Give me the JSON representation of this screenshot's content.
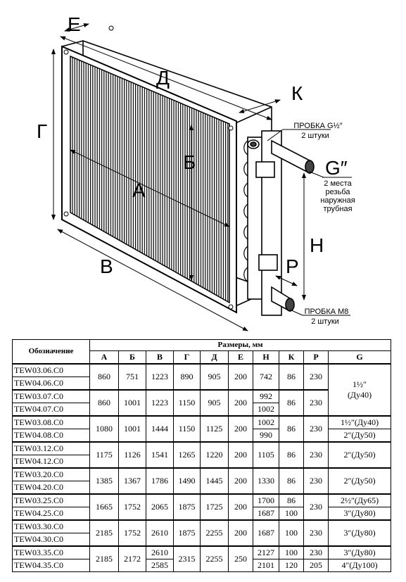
{
  "drawing": {
    "dim_e": "Е",
    "dim_d": "Д",
    "dim_k": "К",
    "dim_g": "Г",
    "dim_b": "Б",
    "dim_a": "А",
    "dim_v": "В",
    "dim_h": "Н",
    "dim_p": "Р",
    "dim_G": "G″",
    "plug_top": "ПРОБКА G½″",
    "plug_top_count": "2 штуки",
    "thread_1": "2 места",
    "thread_2": "резьба",
    "thread_3": "наружная",
    "thread_4": "трубная",
    "plug_bottom": "ПРОБКА М8",
    "plug_bottom_count": "2 штуки"
  },
  "table": {
    "designation_header": "Обозначение",
    "dimensions_header": "Размеры, мм",
    "columns": [
      "А",
      "Б",
      "В",
      "Г",
      "Д",
      "Е",
      "Н",
      "К",
      "Р",
      "G"
    ],
    "groups": [
      {
        "codes": [
          "TEW03.06.C0",
          "TEW04.06.C0"
        ],
        "A": "860",
        "B": "751",
        "V": "1223",
        "G1": "890",
        "D": "905",
        "E": "200",
        "H": [
          "742"
        ],
        "K": [
          "86"
        ],
        "P": [
          "230"
        ],
        "G": [
          "1½″",
          "(Ду40)"
        ]
      },
      {
        "codes": [
          "TEW03.07.C0",
          "TEW04.07.C0"
        ],
        "A": "860",
        "B": "1001",
        "V": "1223",
        "G1": "1150",
        "D": "905",
        "E": "200",
        "H": [
          "992",
          "1002"
        ],
        "K": [
          "86"
        ],
        "P": [
          "230"
        ],
        "G": []
      },
      {
        "codes": [
          "TEW03.08.C0",
          "TEW04.08.C0"
        ],
        "A": "1080",
        "B": "1001",
        "V": "1444",
        "G1": "1150",
        "D": "1125",
        "E": "200",
        "H": [
          "1002",
          "990"
        ],
        "K": [
          "86"
        ],
        "P": [
          "230"
        ],
        "G": [
          "1½″(Ду40)",
          "2″(Ду50)"
        ]
      },
      {
        "codes": [
          "TEW03.12.C0",
          "TEW04.12.C0"
        ],
        "A": "1175",
        "B": "1126",
        "V": "1541",
        "G1": "1265",
        "D": "1220",
        "E": "200",
        "H": [
          "1105"
        ],
        "K": [
          "86"
        ],
        "P": [
          "230"
        ],
        "G": [
          "2″(Ду50)"
        ]
      },
      {
        "codes": [
          "TEW03.20.C0",
          "TEW04.20.C0"
        ],
        "A": "1385",
        "B": "1367",
        "V": "1786",
        "G1": "1490",
        "D": "1445",
        "E": "200",
        "H": [
          "1330"
        ],
        "K": [
          "86"
        ],
        "P": [
          "230"
        ],
        "G": [
          "2″(Ду50)"
        ]
      },
      {
        "codes": [
          "TEW03.25.C0",
          "TEW04.25.C0"
        ],
        "A": "1665",
        "B": "1752",
        "V": "2065",
        "G1": "1875",
        "D": "1725",
        "E": "200",
        "H": [
          "1700",
          "1687"
        ],
        "K": [
          "86",
          "100"
        ],
        "P": [
          "230"
        ],
        "G": [
          "2½″(Ду65)",
          "3″(Ду80)"
        ]
      },
      {
        "codes": [
          "TEW03.30.C0",
          "TEW04.30.C0"
        ],
        "A": "2185",
        "B": "1752",
        "V": "2610",
        "G1": "1875",
        "D": "2255",
        "E": "200",
        "H": [
          "1687"
        ],
        "K": [
          "100"
        ],
        "P": [
          "230"
        ],
        "G": [
          "3″(Ду80)"
        ]
      },
      {
        "codes": [
          "TEW03.35.C0",
          "TEW04.35.C0"
        ],
        "A": "2185",
        "B": "2172",
        "V": [
          "2610",
          "2585"
        ],
        "G1": "2315",
        "D": "2255",
        "E": "250",
        "H": [
          "2127",
          "2101"
        ],
        "K": [
          "100",
          "120"
        ],
        "P": [
          "230",
          "205"
        ],
        "G": [
          "3″(Ду80)",
          "4″(Ду100)"
        ]
      }
    ]
  }
}
